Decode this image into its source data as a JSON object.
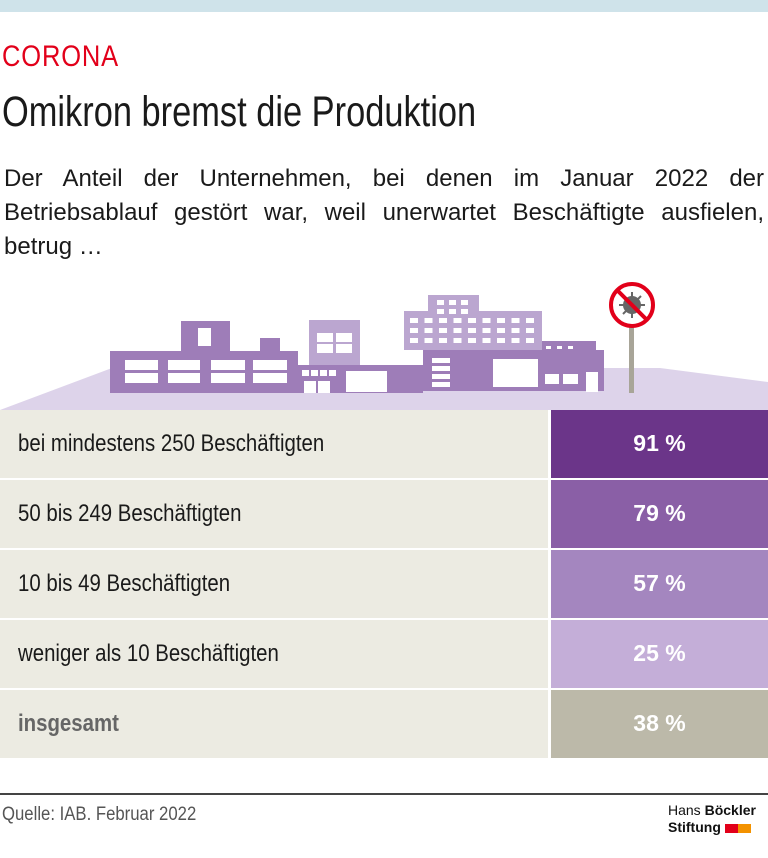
{
  "header": {
    "kicker": "CORONA",
    "title": "Omikron bremst die Produktion",
    "subtitle": "Der Anteil der Unternehmen, bei denen im Januar 2022 der Betriebsablauf gestört war, weil unerwartet Beschäftigte ausfielen, betrug …"
  },
  "chart_data": {
    "type": "table",
    "categories": [
      "bei mindestens 250 Beschäftigten",
      "50 bis 249 Beschäftigten",
      "10 bis 49 Beschäftigten",
      "weniger als 10 Beschäftigten",
      "insgesamt"
    ],
    "values": [
      91,
      79,
      57,
      25,
      38
    ],
    "labels": [
      "91 %",
      "79 %",
      "57 %",
      "25 %",
      "38 %"
    ],
    "colors": [
      "#6b3589",
      "#8a5fa6",
      "#a486bf",
      "#c4aed8",
      "#bcb9a9"
    ]
  },
  "footer": {
    "source": "Quelle: IAB. Februar 2022",
    "logo_line1_a": "Hans",
    "logo_line1_b": "Böckler",
    "logo_line2": "Stiftung"
  },
  "colors": {
    "accent": "#e2001a",
    "building": "#9e7db8",
    "building_light": "#bba6d0",
    "ground": "#ddd3ea"
  }
}
